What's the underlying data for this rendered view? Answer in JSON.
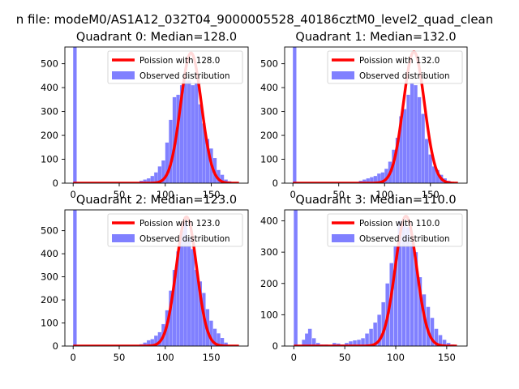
{
  "suptitle": "n file: modeM0/AS1A12_032T04_9000005528_40186cztM0_level2_quad_clean",
  "chart_data": [
    {
      "type": "bar",
      "title": "Quadrant 0: Median=128.0",
      "median": 128.0,
      "xlim": [
        -9,
        190
      ],
      "ylim": [
        0,
        570
      ],
      "xticks": [
        0,
        50,
        100,
        150
      ],
      "yticks": [
        0,
        100,
        200,
        300,
        400,
        500
      ],
      "bin_width": 3.8,
      "bins": [
        [
          0,
          570
        ],
        [
          68,
          3
        ],
        [
          72,
          10
        ],
        [
          76,
          15
        ],
        [
          80,
          20
        ],
        [
          84,
          30
        ],
        [
          88,
          45
        ],
        [
          92,
          70
        ],
        [
          96,
          95
        ],
        [
          100,
          170
        ],
        [
          104,
          265
        ],
        [
          108,
          360
        ],
        [
          112,
          370
        ],
        [
          116,
          410
        ],
        [
          120,
          430
        ],
        [
          124,
          430
        ],
        [
          128,
          410
        ],
        [
          132,
          420
        ],
        [
          136,
          330
        ],
        [
          140,
          250
        ],
        [
          144,
          185
        ],
        [
          148,
          145
        ],
        [
          152,
          105
        ],
        [
          156,
          55
        ],
        [
          160,
          35
        ],
        [
          164,
          15
        ],
        [
          168,
          8
        ],
        [
          172,
          3
        ]
      ],
      "legend": [
        "Poission with 128.0",
        "Observed distribution"
      ],
      "legend_position": "upper right",
      "series": [
        {
          "name": "Poission with 128.0",
          "kind": "line",
          "color": "#ff0000",
          "mean": 128.0,
          "peak": 545,
          "sigma": 11.3,
          "x_range": [
            0,
            180
          ]
        },
        {
          "name": "Observed distribution",
          "kind": "hist",
          "color": "#8080ff"
        }
      ]
    },
    {
      "type": "bar",
      "title": "Quadrant 1: Median=132.0",
      "median": 132.0,
      "xlim": [
        -9,
        190
      ],
      "ylim": [
        0,
        570
      ],
      "xticks": [
        0,
        50,
        100,
        150
      ],
      "yticks": [
        0,
        100,
        200,
        300,
        400,
        500
      ],
      "bin_width": 3.8,
      "bins": [
        [
          0,
          570
        ],
        [
          64,
          3
        ],
        [
          68,
          5
        ],
        [
          72,
          10
        ],
        [
          76,
          15
        ],
        [
          80,
          20
        ],
        [
          84,
          25
        ],
        [
          88,
          30
        ],
        [
          92,
          40
        ],
        [
          96,
          45
        ],
        [
          100,
          60
        ],
        [
          104,
          90
        ],
        [
          108,
          140
        ],
        [
          112,
          190
        ],
        [
          116,
          280
        ],
        [
          120,
          310
        ],
        [
          124,
          370
        ],
        [
          128,
          420
        ],
        [
          132,
          410
        ],
        [
          136,
          360
        ],
        [
          140,
          290
        ],
        [
          144,
          185
        ],
        [
          148,
          120
        ],
        [
          152,
          70
        ],
        [
          156,
          55
        ],
        [
          160,
          35
        ],
        [
          164,
          20
        ],
        [
          168,
          10
        ],
        [
          172,
          3
        ]
      ],
      "legend": [
        "Poission with 132.0",
        "Observed distribution"
      ],
      "legend_position": "upper right",
      "series": [
        {
          "name": "Poission with 132.0",
          "kind": "line",
          "color": "#ff0000",
          "mean": 132.0,
          "peak": 550,
          "sigma": 11.5,
          "x_range": [
            0,
            180
          ]
        },
        {
          "name": "Observed distribution",
          "kind": "hist",
          "color": "#8080ff"
        }
      ]
    },
    {
      "type": "bar",
      "title": "Quadrant 2: Median=123.0",
      "median": 123.0,
      "xlim": [
        -9,
        190
      ],
      "ylim": [
        0,
        590
      ],
      "xticks": [
        0,
        50,
        100,
        150
      ],
      "yticks": [
        0,
        100,
        200,
        300,
        400,
        500
      ],
      "bin_width": 3.8,
      "bins": [
        [
          0,
          590
        ],
        [
          68,
          3
        ],
        [
          72,
          8
        ],
        [
          76,
          15
        ],
        [
          80,
          25
        ],
        [
          84,
          30
        ],
        [
          88,
          45
        ],
        [
          92,
          60
        ],
        [
          96,
          95
        ],
        [
          100,
          155
        ],
        [
          104,
          240
        ],
        [
          108,
          330
        ],
        [
          112,
          410
        ],
        [
          116,
          500
        ],
        [
          120,
          540
        ],
        [
          124,
          470
        ],
        [
          128,
          420
        ],
        [
          132,
          330
        ],
        [
          136,
          280
        ],
        [
          140,
          230
        ],
        [
          144,
          160
        ],
        [
          148,
          110
        ],
        [
          152,
          75
        ],
        [
          156,
          55
        ],
        [
          160,
          35
        ],
        [
          164,
          15
        ],
        [
          168,
          5
        ]
      ],
      "legend": [
        "Poission with 123.0",
        "Observed distribution"
      ],
      "legend_position": "upper right",
      "series": [
        {
          "name": "Poission with 123.0",
          "kind": "line",
          "color": "#ff0000",
          "mean": 123.0,
          "peak": 560,
          "sigma": 11.1,
          "x_range": [
            0,
            180
          ]
        },
        {
          "name": "Observed distribution",
          "kind": "hist",
          "color": "#8080ff"
        }
      ]
    },
    {
      "type": "bar",
      "title": "Quadrant 3: Median=110.0",
      "median": 110.0,
      "xlim": [
        -9,
        170
      ],
      "ylim": [
        0,
        435
      ],
      "xticks": [
        0,
        50,
        100,
        150
      ],
      "yticks": [
        0,
        100,
        200,
        300,
        400
      ],
      "bin_width": 3.6,
      "bins": [
        [
          0,
          435
        ],
        [
          8,
          20
        ],
        [
          11,
          40
        ],
        [
          14,
          55
        ],
        [
          18,
          25
        ],
        [
          22,
          10
        ],
        [
          26,
          5
        ],
        [
          30,
          5
        ],
        [
          34,
          3
        ],
        [
          38,
          10
        ],
        [
          42,
          8
        ],
        [
          46,
          5
        ],
        [
          50,
          10
        ],
        [
          54,
          15
        ],
        [
          58,
          18
        ],
        [
          62,
          20
        ],
        [
          66,
          25
        ],
        [
          70,
          40
        ],
        [
          74,
          55
        ],
        [
          78,
          75
        ],
        [
          82,
          100
        ],
        [
          86,
          140
        ],
        [
          90,
          200
        ],
        [
          94,
          265
        ],
        [
          98,
          320
        ],
        [
          102,
          400
        ],
        [
          106,
          390
        ],
        [
          110,
          380
        ],
        [
          114,
          330
        ],
        [
          118,
          300
        ],
        [
          122,
          220
        ],
        [
          126,
          165
        ],
        [
          130,
          125
        ],
        [
          134,
          90
        ],
        [
          138,
          55
        ],
        [
          142,
          35
        ],
        [
          146,
          20
        ],
        [
          150,
          10
        ],
        [
          154,
          5
        ]
      ],
      "legend": [
        "Poission with 110.0",
        "Observed distribution"
      ],
      "legend_position": "upper right",
      "series": [
        {
          "name": "Poission with 110.0",
          "kind": "line",
          "color": "#ff0000",
          "mean": 110.0,
          "peak": 415,
          "sigma": 10.5,
          "x_range": [
            0,
            160
          ]
        },
        {
          "name": "Observed distribution",
          "kind": "hist",
          "color": "#8080ff"
        }
      ]
    }
  ]
}
